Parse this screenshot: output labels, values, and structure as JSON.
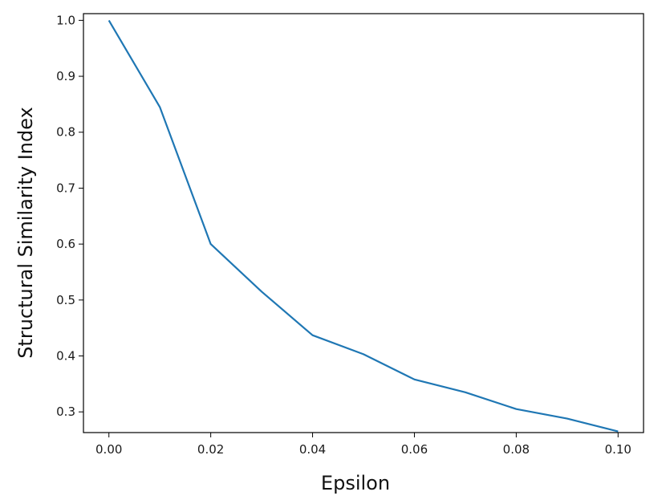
{
  "chart_data": {
    "type": "line",
    "xlabel": "Epsilon",
    "ylabel": "Structural Similarity Index",
    "xlim": [
      -0.005,
      0.105
    ],
    "ylim": [
      0.263,
      1.012
    ],
    "xticks": [
      0.0,
      0.02,
      0.04,
      0.06,
      0.08,
      0.1
    ],
    "xtick_labels": [
      "0.00",
      "0.02",
      "0.04",
      "0.06",
      "0.08",
      "0.10"
    ],
    "yticks": [
      0.3,
      0.4,
      0.5,
      0.6,
      0.7,
      0.8,
      0.9,
      1.0
    ],
    "ytick_labels": [
      "0.3",
      "0.4",
      "0.5",
      "0.6",
      "0.7",
      "0.8",
      "0.9",
      "1.0"
    ],
    "grid": false,
    "series": [
      {
        "color": "#1f77b4",
        "x": [
          0.0,
          0.01,
          0.02,
          0.03,
          0.04,
          0.05,
          0.06,
          0.07,
          0.08,
          0.09,
          0.1
        ],
        "y": [
          1.0,
          0.845,
          0.6,
          0.515,
          0.437,
          0.403,
          0.358,
          0.335,
          0.305,
          0.288,
          0.265
        ]
      }
    ]
  }
}
